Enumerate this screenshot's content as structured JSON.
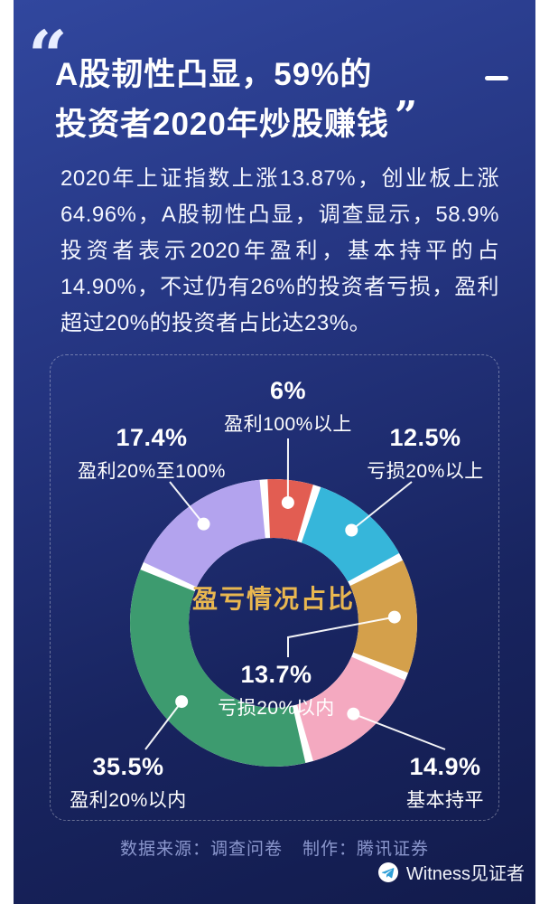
{
  "colors": {
    "background_top": "#31479e",
    "background_bottom": "#121b4c",
    "headline_text": "#ffffff",
    "center_label": "#e9b750",
    "credits_text": "#8b97cd",
    "separator": "#ffffff"
  },
  "quote": {
    "open": "“",
    "close": "”"
  },
  "headline": {
    "lines": [
      "A股韧性凸显，59%的",
      "投资者2020年炒股赚钱"
    ]
  },
  "intro": {
    "text": "2020年上证指数上涨13.87%，创业板上涨64.96%，A股韧性凸显，调查显示，58.9%投资者表示2020年盈利，基本持平的占14.90%，不过仍有26%的投资者亏损，盈利超过20%的投资者占比达23%。"
  },
  "chart_data": {
    "type": "pie",
    "title": "盈亏情况占比",
    "inner_radius_ratio": 0.59,
    "legend": "none",
    "total": 100,
    "segments": [
      {
        "label": "盈利100%以上",
        "value": 6,
        "display": "6%",
        "color": "#e25d52"
      },
      {
        "label": "亏损20%以上",
        "value": 12.5,
        "display": "12.5%",
        "color": "#36b6da"
      },
      {
        "label": "亏损20%以内",
        "value": 13.7,
        "display": "13.7%",
        "color": "#d4a04b"
      },
      {
        "label": "基本持平",
        "value": 14.9,
        "display": "14.9%",
        "color": "#f4a9c0"
      },
      {
        "label": "盈利20%以内",
        "value": 35.5,
        "display": "35.5%",
        "color": "#3d9b6f"
      },
      {
        "label": "盈利20%至100%",
        "value": 17.4,
        "display": "17.4%",
        "color": "#b3a3ee"
      }
    ]
  },
  "footer": {
    "source": "数据来源：调查问卷",
    "producer": "制作：腾讯证券",
    "watermark": "Witness见证者",
    "watermark_icon": "telegram-plane"
  }
}
